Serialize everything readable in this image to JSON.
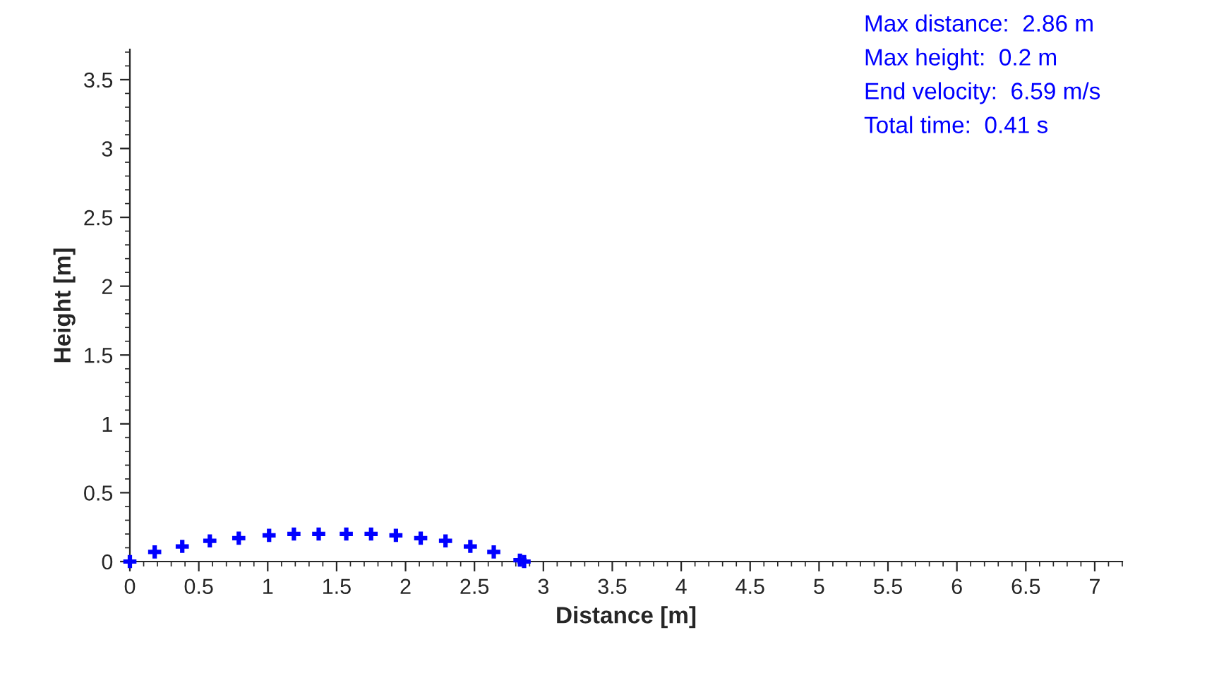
{
  "chart_data": {
    "type": "scatter",
    "xlabel": "Distance [m]",
    "ylabel": "Height [m]",
    "series": [
      {
        "color": "#0000ff",
        "x": [
          0,
          0.18,
          0.38,
          0.58,
          0.79,
          1.01,
          1.19,
          1.37,
          1.57,
          1.75,
          1.93,
          2.11,
          2.29,
          2.47,
          2.64,
          2.83,
          2.86
        ],
        "values": [
          0,
          0.07,
          0.11,
          0.15,
          0.17,
          0.19,
          0.2,
          0.2,
          0.2,
          0.2,
          0.19,
          0.17,
          0.15,
          0.11,
          0.07,
          0.01,
          0
        ]
      }
    ],
    "marker": "cross",
    "xlim": [
      0,
      7.2
    ],
    "xticks": [
      0,
      0.5,
      1,
      1.5,
      2,
      2.5,
      3,
      3.5,
      4,
      4.5,
      5,
      5.5,
      6,
      6.5,
      7
    ],
    "ylim": [
      0,
      3.72
    ],
    "yticks": [
      0,
      0.5,
      1,
      1.5,
      2,
      2.5,
      3,
      3.5
    ],
    "grid": false,
    "annotations": [
      "Max distance:  2.86 m",
      "Max height:  0.2 m",
      "End velocity:  6.59 m/s",
      "Total time:  0.41 s"
    ]
  }
}
